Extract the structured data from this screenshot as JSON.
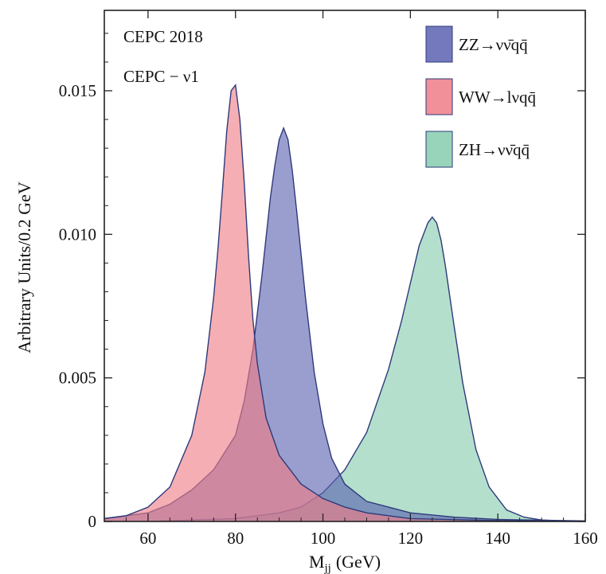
{
  "chart_data": {
    "type": "area",
    "xlabel": "M",
    "xlabel_sub": "jj",
    "xlabel_unit": "(GeV)",
    "ylabel": "Arbitrary Units/0.2 GeV",
    "xlim": [
      50,
      160
    ],
    "ylim": [
      0,
      0.0178
    ],
    "x_ticks": [
      60,
      80,
      100,
      120,
      140,
      160
    ],
    "x_tick_labels": [
      "60",
      "80",
      "100",
      "120",
      "140",
      "160"
    ],
    "y_ticks": [
      0,
      0.005,
      0.01,
      0.015
    ],
    "y_tick_labels": [
      "0",
      "0.005",
      "0.010",
      "0.015"
    ],
    "grid": false,
    "annotations": [
      "CEPC 2018",
      "CEPC − ν1"
    ],
    "legend_position": "top-right",
    "series": [
      {
        "name": "ZZ→νν̄qq̄",
        "color": "#5a62b0",
        "x": [
          50,
          60,
          65,
          70,
          75,
          80,
          82,
          84,
          86,
          88,
          89,
          90,
          91,
          92,
          93,
          94,
          96,
          98,
          100,
          102,
          105,
          110,
          120,
          130,
          140,
          160
        ],
        "y": [
          0.0001,
          0.0003,
          0.0006,
          0.0011,
          0.0018,
          0.003,
          0.0042,
          0.006,
          0.0085,
          0.0113,
          0.0124,
          0.0133,
          0.0137,
          0.0133,
          0.0122,
          0.0108,
          0.0078,
          0.0052,
          0.0034,
          0.0022,
          0.0013,
          0.0007,
          0.0003,
          0.00015,
          7e-05,
          2e-05
        ]
      },
      {
        "name": "WW→lνqq̄",
        "color": "#ef7d86",
        "x": [
          50,
          55,
          60,
          65,
          70,
          73,
          75,
          76,
          77,
          78,
          79,
          80,
          81,
          82,
          83,
          84,
          85,
          87,
          90,
          95,
          100,
          105,
          110,
          120,
          140,
          160
        ],
        "y": [
          0.0001,
          0.0002,
          0.0005,
          0.0012,
          0.003,
          0.0052,
          0.0078,
          0.0095,
          0.0115,
          0.0136,
          0.015,
          0.0152,
          0.014,
          0.0118,
          0.0092,
          0.007,
          0.0055,
          0.0036,
          0.0023,
          0.0013,
          0.0008,
          0.0005,
          0.0003,
          0.0001,
          3e-05,
          1e-05
        ]
      },
      {
        "name": "ZH→νν̄qq̄",
        "color": "#86ccae",
        "x": [
          50,
          60,
          70,
          80,
          90,
          95,
          100,
          105,
          110,
          115,
          118,
          120,
          122,
          124,
          125,
          126,
          127,
          128,
          130,
          132,
          135,
          138,
          142,
          146,
          150,
          155,
          160
        ],
        "y": [
          0.0,
          0.0,
          5e-05,
          0.0001,
          0.0003,
          0.0005,
          0.001,
          0.0018,
          0.0031,
          0.0053,
          0.007,
          0.0083,
          0.0096,
          0.0104,
          0.0106,
          0.0104,
          0.0098,
          0.0089,
          0.0068,
          0.0048,
          0.0025,
          0.0012,
          0.0004,
          0.00015,
          5e-05,
          2e-05,
          1e-05
        ]
      }
    ]
  }
}
